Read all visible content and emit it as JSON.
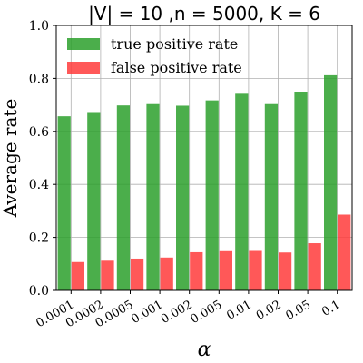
{
  "chart_data": {
    "type": "bar",
    "title": "|V| = 10 ,n = 5000, K = 6",
    "xlabel": "α",
    "ylabel": "Average rate",
    "categories": [
      "0.0001",
      "0.0002",
      "0.0005",
      "0.001",
      "0.002",
      "0.005",
      "0.01",
      "0.02",
      "0.05",
      "0.1"
    ],
    "series": [
      {
        "name": "true positive rate",
        "color": "#2ca02c",
        "values": [
          0.657,
          0.673,
          0.698,
          0.703,
          0.697,
          0.717,
          0.742,
          0.703,
          0.75,
          0.812
        ]
      },
      {
        "name": "false positive rate",
        "color": "#ff3b3b",
        "values": [
          0.107,
          0.112,
          0.12,
          0.124,
          0.144,
          0.148,
          0.149,
          0.143,
          0.178,
          0.286
        ]
      }
    ],
    "ylim": [
      0,
      1.0
    ],
    "yticks": [
      "0.0",
      "0.2",
      "0.4",
      "0.6",
      "0.8",
      "1.0"
    ],
    "grid": true,
    "legend_position": "top-left"
  }
}
